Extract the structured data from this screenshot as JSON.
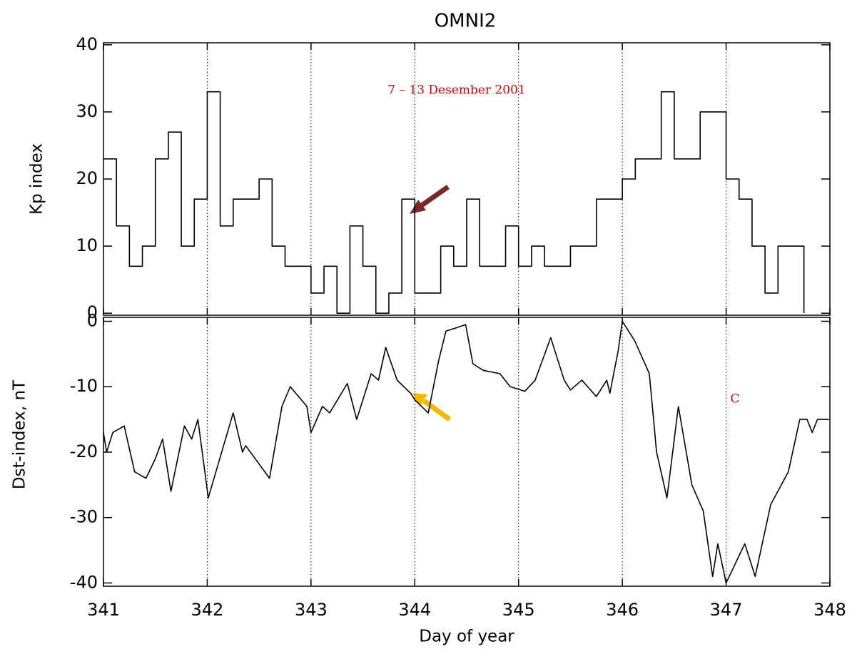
{
  "chart_data": [
    {
      "type": "step",
      "title": "OMNI2",
      "ylabel": "Kp index",
      "annotation": "7 – 13 Desember 2001",
      "color": "#000000",
      "grid": true,
      "xlim": [
        341,
        348
      ],
      "xticks": [
        341,
        342,
        343,
        344,
        345,
        346,
        347,
        348
      ],
      "ylim": [
        -0.3,
        40.3
      ],
      "yticks": [
        0,
        10,
        20,
        30,
        40
      ],
      "x": [
        341.0,
        341.125,
        341.25,
        341.375,
        341.5,
        341.625,
        341.75,
        341.875,
        342.0,
        342.125,
        342.25,
        342.375,
        342.5,
        342.625,
        342.75,
        342.875,
        343.0,
        343.125,
        343.25,
        343.375,
        343.5,
        343.625,
        343.75,
        343.875,
        344.0,
        344.125,
        344.25,
        344.375,
        344.5,
        344.625,
        344.75,
        344.875,
        345.0,
        345.125,
        345.25,
        345.375,
        345.5,
        345.625,
        345.75,
        345.875,
        346.0,
        346.125,
        346.25,
        346.375,
        346.5,
        346.625,
        346.75,
        346.875,
        347.0,
        347.125,
        347.25,
        347.375,
        347.5,
        347.625,
        347.75
      ],
      "values": [
        23,
        13,
        7,
        10,
        23,
        27,
        10,
        17,
        33,
        13,
        17,
        17,
        20,
        10,
        7,
        7,
        3,
        7,
        0,
        13,
        7,
        0,
        3,
        17,
        3,
        3,
        10,
        7,
        17,
        7,
        7,
        13,
        7,
        10,
        7,
        7,
        10,
        10,
        17,
        17,
        20,
        23,
        23,
        33,
        23,
        23,
        30,
        30,
        20,
        17,
        10,
        3,
        10,
        10,
        0
      ]
    },
    {
      "type": "line",
      "ylabel": "Dst-index, nT",
      "xlabel": "Day of year",
      "annotation": "C",
      "color": "#000000",
      "grid": true,
      "xlim": [
        341,
        348
      ],
      "xticks": [
        341,
        342,
        343,
        344,
        345,
        346,
        347,
        348
      ],
      "ylim": [
        -40.5,
        0.6
      ],
      "yticks": [
        0,
        -10,
        -20,
        -30,
        -40
      ],
      "x": [
        341.0,
        341.03,
        341.09,
        341.2,
        341.3,
        341.41,
        341.5,
        341.57,
        341.65,
        341.78,
        341.85,
        341.91,
        342.01,
        342.25,
        342.34,
        342.37,
        342.6,
        342.72,
        342.8,
        342.96,
        343.0,
        343.11,
        343.18,
        343.35,
        343.44,
        343.58,
        343.65,
        343.72,
        343.83,
        343.96,
        344.0,
        344.13,
        344.23,
        344.3,
        344.4,
        344.49,
        344.56,
        344.66,
        344.82,
        344.92,
        345.06,
        345.16,
        345.31,
        345.44,
        345.5,
        345.61,
        345.75,
        345.85,
        345.88,
        345.96,
        346.0,
        346.12,
        346.26,
        346.33,
        346.43,
        346.54,
        346.67,
        346.78,
        346.87,
        346.92,
        347.0,
        347.18,
        347.28,
        347.43,
        347.6,
        347.71,
        347.78,
        347.83,
        347.88,
        347.99
      ],
      "values": [
        -17,
        -20,
        -17,
        -16,
        -23,
        -24,
        -21,
        -18,
        -26,
        -16,
        -18,
        -15,
        -27,
        -14,
        -20,
        -19,
        -24,
        -13,
        -10,
        -13,
        -17,
        -13,
        -14,
        -9.5,
        -15,
        -8,
        -9,
        -4,
        -9,
        -11,
        -12,
        -14,
        -6,
        -1.5,
        -1,
        -0.5,
        -6.5,
        -7.5,
        -8,
        -10,
        -10.7,
        -9,
        -2.5,
        -9,
        -10.5,
        -9,
        -11.5,
        -9,
        -11,
        -4.5,
        0,
        -3,
        -8,
        -20,
        -27,
        -13,
        -25,
        -29,
        -39,
        -34,
        -40,
        -34,
        -39,
        -28,
        -23,
        -15,
        -15,
        -17,
        -15,
        -15
      ]
    }
  ]
}
